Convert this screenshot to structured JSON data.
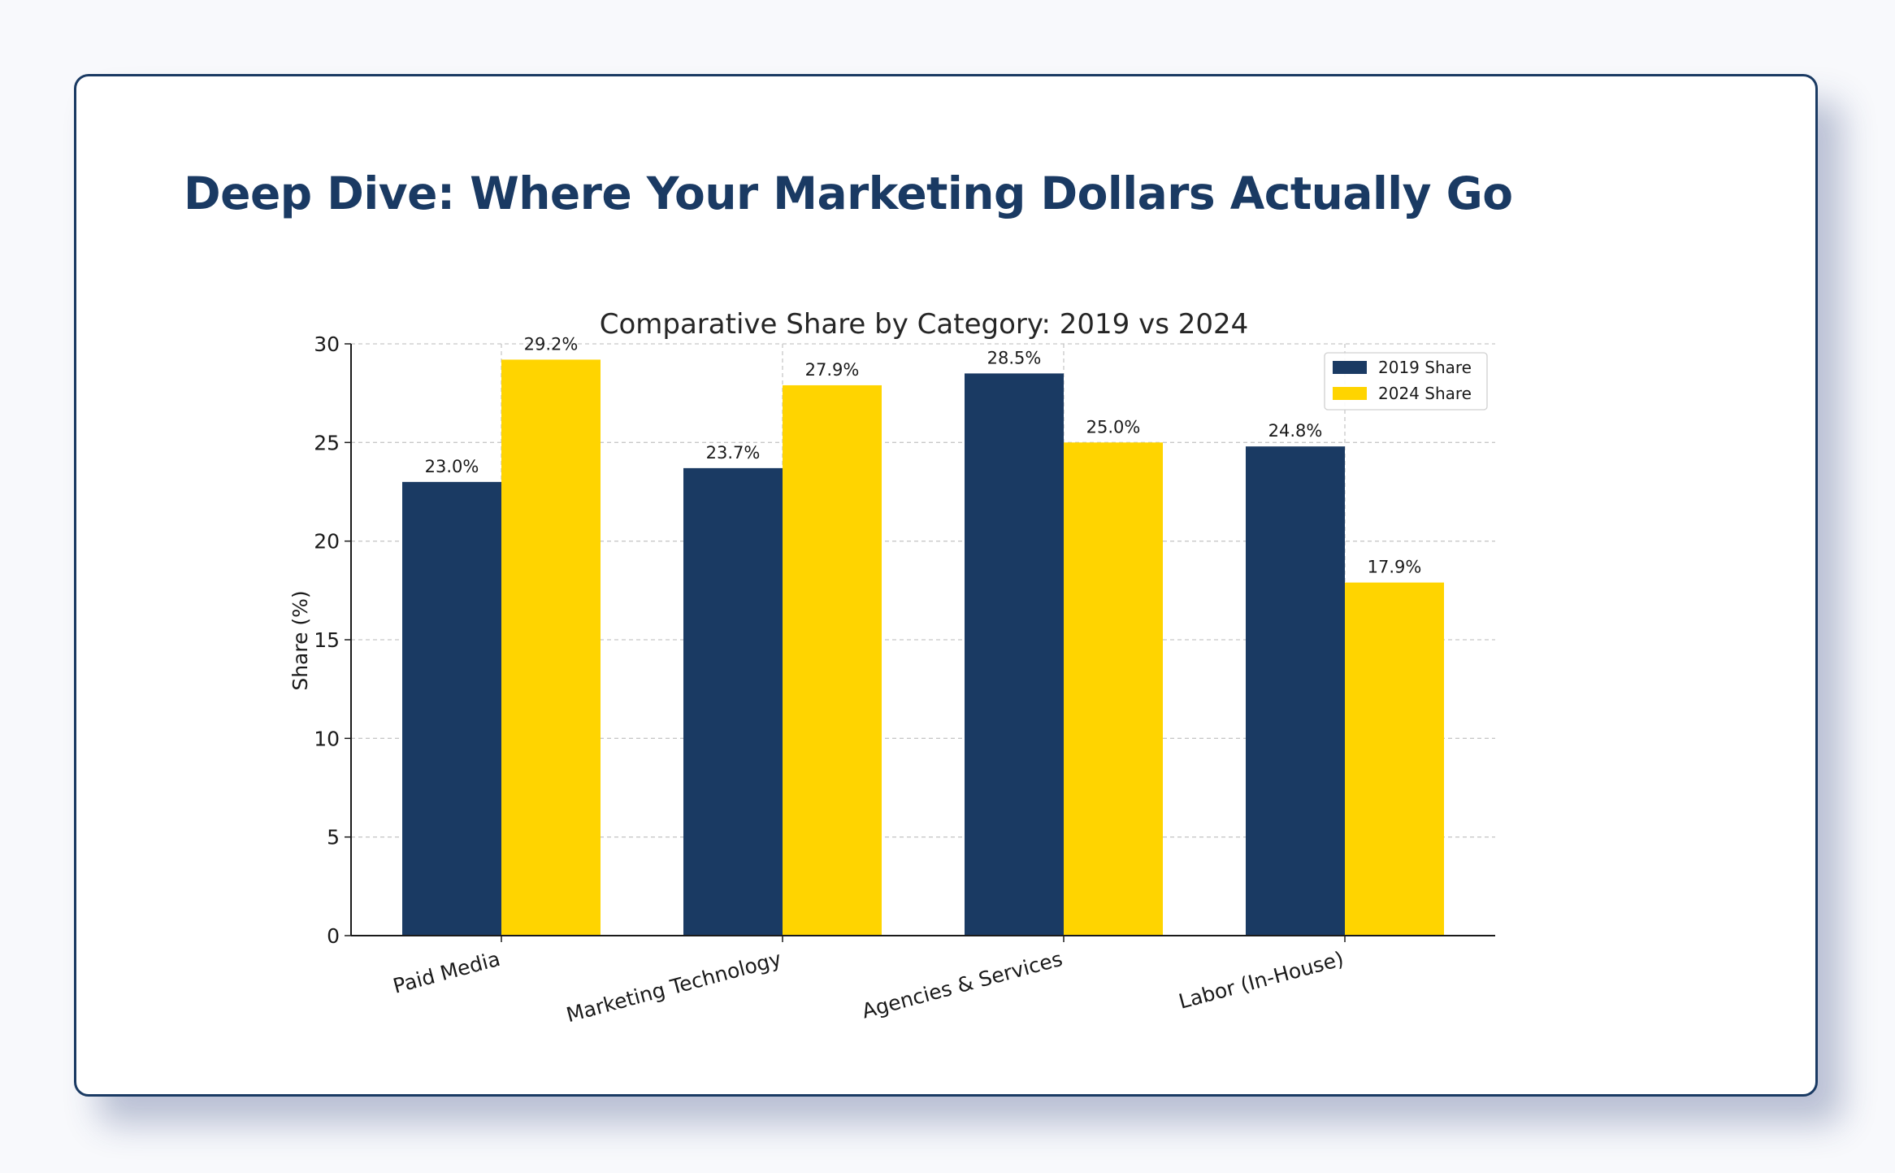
{
  "page": {
    "title": "Deep Dive: Where Your Marketing Dollars Actually Go"
  },
  "colors": {
    "series_2019": "#1a3a63",
    "series_2024": "#ffd400",
    "title": "#1a3a63",
    "card_border": "#1a3a63",
    "grid": "#c8c8c8"
  },
  "chart_data": {
    "type": "bar",
    "title": "Comparative Share by Category: 2019 vs 2024",
    "xlabel": "",
    "ylabel": "Share (%)",
    "ylim": [
      0,
      30
    ],
    "yticks": [
      0,
      5,
      10,
      15,
      20,
      25,
      30
    ],
    "grid": true,
    "legend_position": "top-right",
    "categories": [
      "Paid Media",
      "Marketing Technology",
      "Agencies & Services",
      "Labor (In-House)"
    ],
    "series": [
      {
        "name": "2019 Share",
        "values": [
          23.0,
          23.7,
          28.5,
          24.8
        ],
        "labels": [
          "23.0%",
          "23.7%",
          "28.5%",
          "24.8%"
        ]
      },
      {
        "name": "2024 Share",
        "values": [
          29.2,
          27.9,
          25.0,
          17.9
        ],
        "labels": [
          "29.2%",
          "27.9%",
          "25.0%",
          "17.9%"
        ]
      }
    ]
  }
}
